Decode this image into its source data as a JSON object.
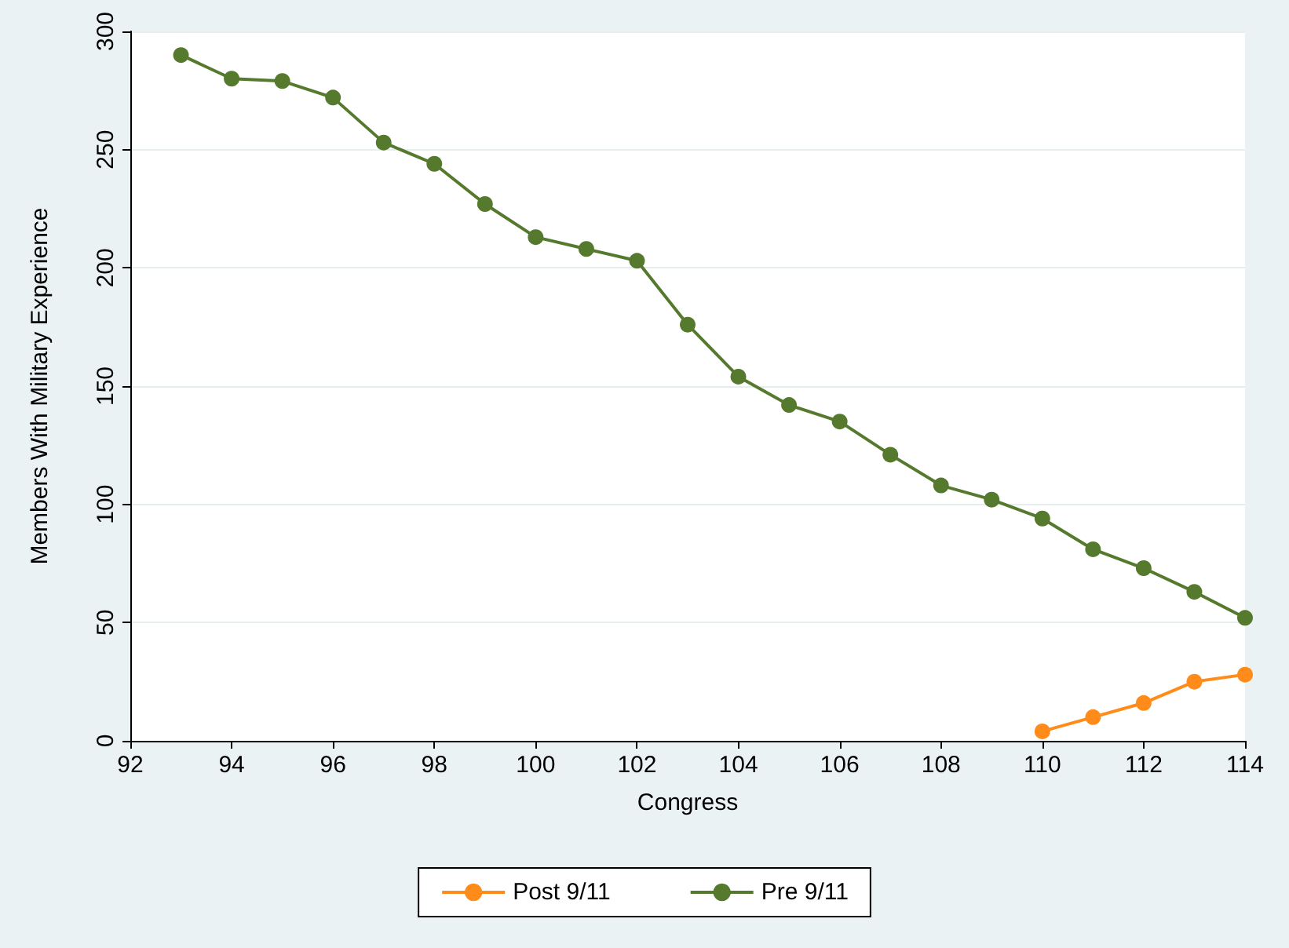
{
  "chart_data": {
    "type": "line",
    "xlabel": "Congress",
    "ylabel": "Members With Military Experience",
    "xlim": [
      92,
      114
    ],
    "xticks": [
      92,
      94,
      96,
      98,
      100,
      102,
      104,
      106,
      108,
      110,
      112,
      114
    ],
    "ylim": [
      0,
      300
    ],
    "yticks": [
      0,
      50,
      100,
      150,
      200,
      250,
      300
    ],
    "grid": "y",
    "legend": "bottom",
    "marker": "circle",
    "line_style": "solid",
    "series": [
      {
        "name": "Post 9/11",
        "color": "#ff8c1a",
        "x": [
          110,
          111,
          112,
          113,
          114
        ],
        "values": [
          4,
          10,
          16,
          25,
          28
        ]
      },
      {
        "name": "Pre 9/11",
        "color": "#557a2e",
        "x": [
          93,
          94,
          95,
          96,
          97,
          98,
          99,
          100,
          101,
          102,
          103,
          104,
          105,
          106,
          107,
          108,
          109,
          110,
          111,
          112,
          113,
          114
        ],
        "values": [
          290,
          280,
          279,
          272,
          253,
          244,
          227,
          213,
          208,
          203,
          176,
          154,
          142,
          135,
          121,
          108,
          102,
          94,
          81,
          73,
          63,
          52
        ]
      }
    ]
  }
}
